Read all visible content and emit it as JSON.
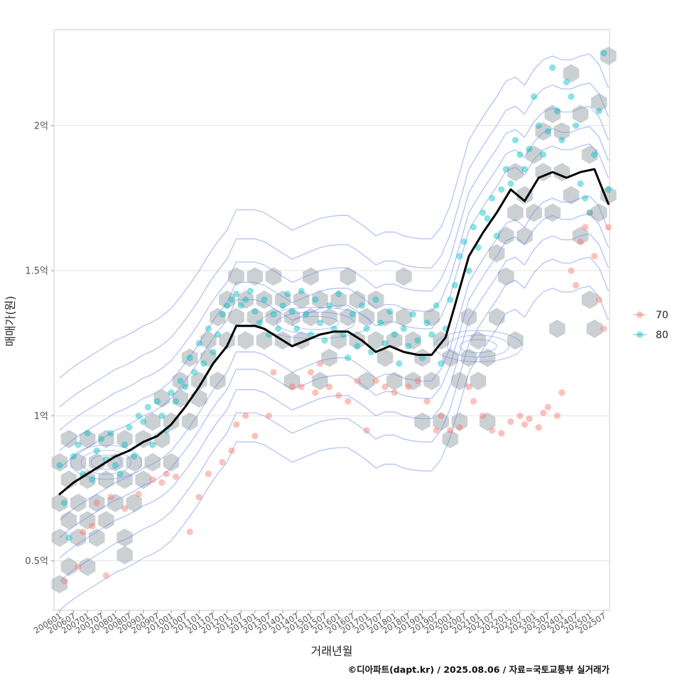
{
  "chart_data": {
    "type": "line",
    "layers": [
      "hexbin-density",
      "density-contours",
      "scatter",
      "moving-average-line"
    ],
    "xlabel": "거래년월",
    "ylabel": "매매가(원)",
    "caption": "©디아파트(dapt.kr) / 2025.08.06 / 자료=국토교통부 실거래가",
    "x_ticks": [
      "200601",
      "200607",
      "200701",
      "200707",
      "200801",
      "200807",
      "200901",
      "200907",
      "201001",
      "201007",
      "201101",
      "201107",
      "201201",
      "201207",
      "201301",
      "201307",
      "201401",
      "201407",
      "201501",
      "201507",
      "201601",
      "201607",
      "201701",
      "201707",
      "201801",
      "201807",
      "201901",
      "201907",
      "202001",
      "202007",
      "202101",
      "202107",
      "202201",
      "202207",
      "202301",
      "202307",
      "202401",
      "202407",
      "202501",
      "202507"
    ],
    "y_ticks": [
      {
        "value": 50000000,
        "label": "0.5억"
      },
      {
        "value": 100000000,
        "label": "1억"
      },
      {
        "value": 150000000,
        "label": "1.5억"
      },
      {
        "value": 200000000,
        "label": "2억"
      }
    ],
    "ylim": [
      33000000,
      233000000
    ],
    "xlim_index": [
      -2.4,
      236.5
    ],
    "grid": true,
    "legend_position": "right",
    "legend": [
      {
        "label": "70",
        "color": "#F8766D"
      },
      {
        "label": "80",
        "color": "#00BFC4"
      }
    ],
    "line_color": "#000000",
    "contour_color": "#6A8BEA",
    "hex_color": "#A9B0B6",
    "moving_average": {
      "x_month_index": [
        0,
        6,
        12,
        18,
        24,
        30,
        36,
        42,
        48,
        54,
        60,
        66,
        72,
        76,
        80,
        84,
        88,
        94,
        100,
        106,
        112,
        118,
        124,
        130,
        136,
        142,
        148,
        154,
        160,
        166,
        170,
        176,
        182,
        188,
        194,
        200,
        206,
        212,
        218,
        224,
        230,
        234,
        236
      ],
      "y": [
        73000000,
        77000000,
        80000000,
        83000000,
        86000000,
        88000000,
        91000000,
        93000000,
        97000000,
        103000000,
        110000000,
        118000000,
        124000000,
        131000000,
        131000000,
        131000000,
        130000000,
        127000000,
        124000000,
        126000000,
        128000000,
        129000000,
        129000000,
        126000000,
        122000000,
        124000000,
        122000000,
        121000000,
        121000000,
        127000000,
        138000000,
        155000000,
        163000000,
        170000000,
        178000000,
        174000000,
        182000000,
        184000000,
        182000000,
        184000000,
        185000000,
        177000000,
        173000000
      ]
    },
    "scatter_70": [
      [
        2,
        43000000
      ],
      [
        8,
        48000000
      ],
      [
        10,
        60000000
      ],
      [
        14,
        62000000
      ],
      [
        20,
        45000000
      ],
      [
        16,
        70000000
      ],
      [
        22,
        72000000
      ],
      [
        28,
        68000000
      ],
      [
        34,
        73000000
      ],
      [
        40,
        78000000
      ],
      [
        44,
        77000000
      ],
      [
        46,
        80000000
      ],
      [
        50,
        79000000
      ],
      [
        56,
        60000000
      ],
      [
        60,
        72000000
      ],
      [
        64,
        80000000
      ],
      [
        70,
        84000000
      ],
      [
        74,
        88000000
      ],
      [
        76,
        97000000
      ],
      [
        80,
        100000000
      ],
      [
        84,
        93000000
      ],
      [
        90,
        100000000
      ],
      [
        92,
        115000000
      ],
      [
        100,
        110000000
      ],
      [
        104,
        110000000
      ],
      [
        108,
        115000000
      ],
      [
        110,
        108000000
      ],
      [
        112,
        118000000
      ],
      [
        116,
        110000000
      ],
      [
        120,
        107000000
      ],
      [
        124,
        105000000
      ],
      [
        128,
        112000000
      ],
      [
        132,
        95000000
      ],
      [
        136,
        112000000
      ],
      [
        140,
        110000000
      ],
      [
        144,
        108000000
      ],
      [
        150,
        110000000
      ],
      [
        154,
        112000000
      ],
      [
        158,
        105000000
      ],
      [
        162,
        95000000
      ],
      [
        164,
        100000000
      ],
      [
        168,
        95000000
      ],
      [
        172,
        96000000
      ],
      [
        176,
        110000000
      ],
      [
        178,
        105000000
      ],
      [
        182,
        100000000
      ],
      [
        186,
        95000000
      ],
      [
        190,
        94000000
      ],
      [
        194,
        98000000
      ],
      [
        198,
        100000000
      ],
      [
        200,
        97000000
      ],
      [
        202,
        99000000
      ],
      [
        206,
        96000000
      ],
      [
        208,
        101000000
      ],
      [
        210,
        103000000
      ],
      [
        214,
        100000000
      ],
      [
        216,
        108000000
      ],
      [
        220,
        150000000
      ],
      [
        222,
        145000000
      ],
      [
        224,
        160000000
      ],
      [
        226,
        165000000
      ],
      [
        228,
        170000000
      ],
      [
        230,
        155000000
      ],
      [
        232,
        140000000
      ],
      [
        234,
        130000000
      ],
      [
        236,
        165000000
      ]
    ],
    "scatter_80": [
      [
        0,
        83000000
      ],
      [
        2,
        70000000
      ],
      [
        4,
        58000000
      ],
      [
        6,
        86000000
      ],
      [
        8,
        90000000
      ],
      [
        10,
        80000000
      ],
      [
        12,
        94000000
      ],
      [
        14,
        78000000
      ],
      [
        16,
        88000000
      ],
      [
        18,
        92000000
      ],
      [
        20,
        85000000
      ],
      [
        22,
        94000000
      ],
      [
        24,
        83000000
      ],
      [
        26,
        80000000
      ],
      [
        28,
        90000000
      ],
      [
        30,
        96000000
      ],
      [
        32,
        86000000
      ],
      [
        34,
        100000000
      ],
      [
        36,
        98000000
      ],
      [
        38,
        103000000
      ],
      [
        40,
        90000000
      ],
      [
        42,
        105000000
      ],
      [
        44,
        100000000
      ],
      [
        46,
        95000000
      ],
      [
        48,
        108000000
      ],
      [
        50,
        105000000
      ],
      [
        52,
        112000000
      ],
      [
        54,
        110000000
      ],
      [
        56,
        120000000
      ],
      [
        58,
        115000000
      ],
      [
        60,
        125000000
      ],
      [
        62,
        118000000
      ],
      [
        64,
        130000000
      ],
      [
        66,
        122000000
      ],
      [
        68,
        128000000
      ],
      [
        70,
        135000000
      ],
      [
        72,
        138000000
      ],
      [
        74,
        140000000
      ],
      [
        76,
        142000000
      ],
      [
        78,
        138000000
      ],
      [
        80,
        140000000
      ],
      [
        82,
        143000000
      ],
      [
        84,
        136000000
      ],
      [
        86,
        132000000
      ],
      [
        88,
        140000000
      ],
      [
        90,
        128000000
      ],
      [
        92,
        135000000
      ],
      [
        94,
        130000000
      ],
      [
        96,
        138000000
      ],
      [
        98,
        142000000
      ],
      [
        100,
        136000000
      ],
      [
        102,
        130000000
      ],
      [
        104,
        143000000
      ],
      [
        106,
        135000000
      ],
      [
        108,
        128000000
      ],
      [
        110,
        140000000
      ],
      [
        112,
        132000000
      ],
      [
        114,
        126000000
      ],
      [
        116,
        138000000
      ],
      [
        118,
        130000000
      ],
      [
        120,
        142000000
      ],
      [
        122,
        128000000
      ],
      [
        124,
        120000000
      ],
      [
        126,
        135000000
      ],
      [
        128,
        124000000
      ],
      [
        130,
        138000000
      ],
      [
        132,
        130000000
      ],
      [
        134,
        122000000
      ],
      [
        136,
        140000000
      ],
      [
        138,
        132000000
      ],
      [
        140,
        125000000
      ],
      [
        142,
        136000000
      ],
      [
        144,
        128000000
      ],
      [
        146,
        118000000
      ],
      [
        148,
        130000000
      ],
      [
        150,
        124000000
      ],
      [
        152,
        135000000
      ],
      [
        154,
        126000000
      ],
      [
        156,
        120000000
      ],
      [
        158,
        132000000
      ],
      [
        160,
        128000000
      ],
      [
        162,
        138000000
      ],
      [
        164,
        118000000
      ],
      [
        166,
        130000000
      ],
      [
        168,
        140000000
      ],
      [
        170,
        145000000
      ],
      [
        172,
        155000000
      ],
      [
        174,
        160000000
      ],
      [
        176,
        150000000
      ],
      [
        178,
        165000000
      ],
      [
        180,
        158000000
      ],
      [
        182,
        170000000
      ],
      [
        184,
        168000000
      ],
      [
        186,
        175000000
      ],
      [
        188,
        162000000
      ],
      [
        190,
        178000000
      ],
      [
        192,
        185000000
      ],
      [
        194,
        180000000
      ],
      [
        196,
        195000000
      ],
      [
        198,
        190000000
      ],
      [
        200,
        185000000
      ],
      [
        202,
        192000000
      ],
      [
        204,
        210000000
      ],
      [
        206,
        200000000
      ],
      [
        208,
        190000000
      ],
      [
        210,
        198000000
      ],
      [
        212,
        220000000
      ],
      [
        214,
        205000000
      ],
      [
        216,
        195000000
      ],
      [
        218,
        215000000
      ],
      [
        220,
        210000000
      ],
      [
        222,
        200000000
      ],
      [
        224,
        180000000
      ],
      [
        226,
        175000000
      ],
      [
        228,
        170000000
      ],
      [
        230,
        190000000
      ],
      [
        232,
        205000000
      ],
      [
        234,
        225000000
      ],
      [
        236,
        178000000
      ]
    ],
    "hexbins": [
      [
        0,
        42000000
      ],
      [
        0,
        58000000
      ],
      [
        0,
        70000000
      ],
      [
        0,
        84000000
      ],
      [
        4,
        48000000
      ],
      [
        4,
        64000000
      ],
      [
        4,
        78000000
      ],
      [
        4,
        92000000
      ],
      [
        8,
        58000000
      ],
      [
        8,
        70000000
      ],
      [
        8,
        84000000
      ],
      [
        12,
        48000000
      ],
      [
        12,
        64000000
      ],
      [
        12,
        78000000
      ],
      [
        12,
        92000000
      ],
      [
        16,
        58000000
      ],
      [
        16,
        70000000
      ],
      [
        16,
        84000000
      ],
      [
        20,
        64000000
      ],
      [
        20,
        78000000
      ],
      [
        20,
        92000000
      ],
      [
        24,
        70000000
      ],
      [
        24,
        84000000
      ],
      [
        28,
        52000000
      ],
      [
        28,
        58000000
      ],
      [
        28,
        78000000
      ],
      [
        28,
        92000000
      ],
      [
        32,
        70000000
      ],
      [
        32,
        84000000
      ],
      [
        36,
        78000000
      ],
      [
        36,
        92000000
      ],
      [
        40,
        84000000
      ],
      [
        40,
        98000000
      ],
      [
        44,
        92000000
      ],
      [
        44,
        106000000
      ],
      [
        48,
        84000000
      ],
      [
        48,
        98000000
      ],
      [
        52,
        106000000
      ],
      [
        52,
        112000000
      ],
      [
        56,
        98000000
      ],
      [
        56,
        120000000
      ],
      [
        60,
        106000000
      ],
      [
        60,
        112000000
      ],
      [
        64,
        120000000
      ],
      [
        64,
        126000000
      ],
      [
        68,
        112000000
      ],
      [
        68,
        134000000
      ],
      [
        72,
        126000000
      ],
      [
        72,
        140000000
      ],
      [
        76,
        134000000
      ],
      [
        76,
        148000000
      ],
      [
        80,
        140000000
      ],
      [
        80,
        126000000
      ],
      [
        84,
        134000000
      ],
      [
        84,
        148000000
      ],
      [
        88,
        126000000
      ],
      [
        88,
        140000000
      ],
      [
        92,
        134000000
      ],
      [
        92,
        148000000
      ],
      [
        96,
        140000000
      ],
      [
        96,
        126000000
      ],
      [
        100,
        134000000
      ],
      [
        100,
        112000000
      ],
      [
        104,
        140000000
      ],
      [
        104,
        126000000
      ],
      [
        108,
        134000000
      ],
      [
        108,
        148000000
      ],
      [
        112,
        140000000
      ],
      [
        112,
        112000000
      ],
      [
        116,
        134000000
      ],
      [
        116,
        120000000
      ],
      [
        120,
        140000000
      ],
      [
        120,
        126000000
      ],
      [
        124,
        134000000
      ],
      [
        124,
        148000000
      ],
      [
        128,
        126000000
      ],
      [
        128,
        140000000
      ],
      [
        132,
        134000000
      ],
      [
        132,
        112000000
      ],
      [
        136,
        140000000
      ],
      [
        136,
        126000000
      ],
      [
        140,
        134000000
      ],
      [
        140,
        120000000
      ],
      [
        144,
        126000000
      ],
      [
        144,
        112000000
      ],
      [
        148,
        134000000
      ],
      [
        148,
        148000000
      ],
      [
        152,
        126000000
      ],
      [
        152,
        112000000
      ],
      [
        156,
        120000000
      ],
      [
        156,
        98000000
      ],
      [
        160,
        134000000
      ],
      [
        160,
        112000000
      ],
      [
        164,
        126000000
      ],
      [
        164,
        98000000
      ],
      [
        168,
        120000000
      ],
      [
        168,
        92000000
      ],
      [
        172,
        112000000
      ],
      [
        172,
        98000000
      ],
      [
        176,
        134000000
      ],
      [
        176,
        120000000
      ],
      [
        180,
        126000000
      ],
      [
        180,
        112000000
      ],
      [
        184,
        120000000
      ],
      [
        184,
        98000000
      ],
      [
        188,
        134000000
      ],
      [
        188,
        156000000
      ],
      [
        192,
        162000000
      ],
      [
        192,
        148000000
      ],
      [
        196,
        170000000
      ],
      [
        196,
        184000000
      ],
      [
        200,
        176000000
      ],
      [
        200,
        162000000
      ],
      [
        204,
        190000000
      ],
      [
        204,
        170000000
      ],
      [
        208,
        198000000
      ],
      [
        208,
        184000000
      ],
      [
        212,
        204000000
      ],
      [
        212,
        170000000
      ],
      [
        216,
        198000000
      ],
      [
        216,
        184000000
      ],
      [
        220,
        218000000
      ],
      [
        220,
        176000000
      ],
      [
        224,
        204000000
      ],
      [
        224,
        162000000
      ],
      [
        228,
        190000000
      ],
      [
        228,
        140000000
      ],
      [
        232,
        208000000
      ],
      [
        232,
        170000000
      ],
      [
        236,
        224000000
      ],
      [
        236,
        176000000
      ],
      [
        196,
        126000000
      ],
      [
        214,
        130000000
      ],
      [
        230,
        130000000
      ]
    ]
  }
}
